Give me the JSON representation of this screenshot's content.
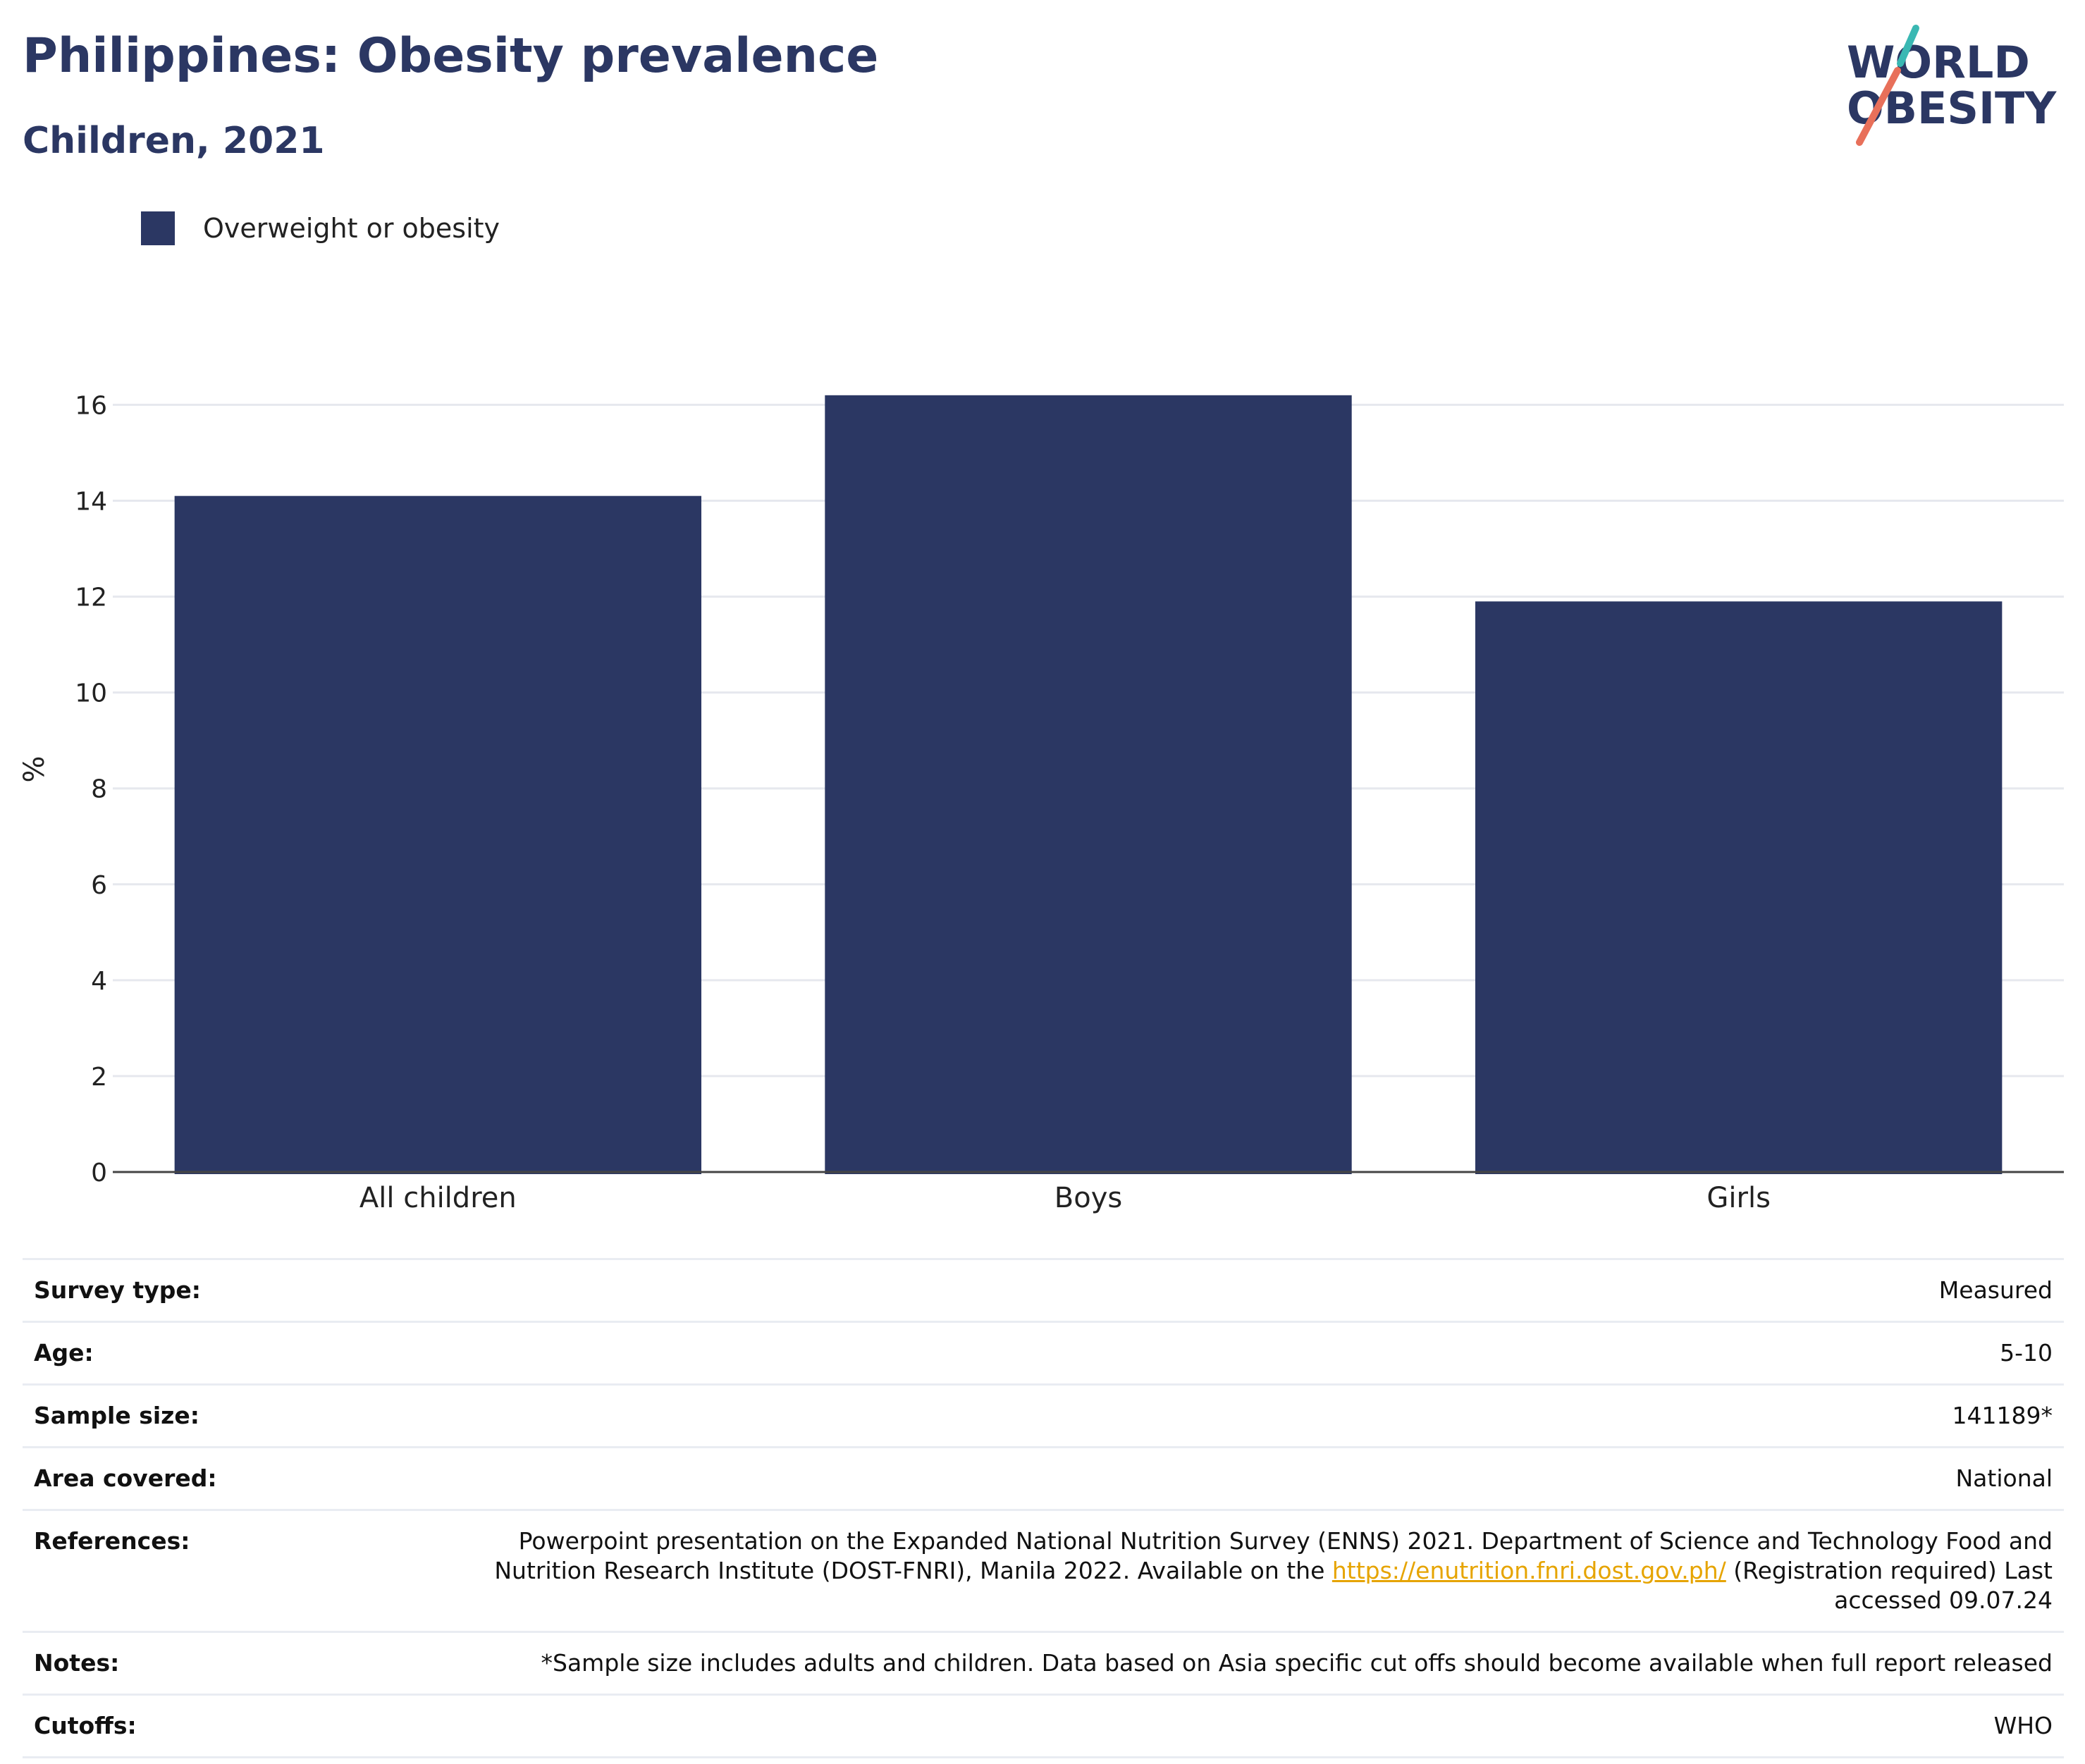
{
  "header": {
    "title": "Philippines: Obesity prevalence",
    "subtitle": "Children, 2021"
  },
  "logo": {
    "line1": "WORLD",
    "line2": "OBESITY"
  },
  "colors": {
    "bar": "#2b3763",
    "title": "#2b3763",
    "link": "#e6a400",
    "logo_teal": "#3ab8b3",
    "logo_coral": "#e8705a"
  },
  "chart_data": {
    "type": "bar",
    "categories": [
      "All children",
      "Boys",
      "Girls"
    ],
    "series": [
      {
        "name": "Overweight or obesity",
        "values": [
          14.1,
          16.2,
          11.9
        ]
      }
    ],
    "ylabel": "%",
    "ylim": [
      0,
      16.8
    ],
    "yticks": [
      0,
      2,
      4,
      6,
      8,
      10,
      12,
      14,
      16
    ],
    "grid": true,
    "legend": "top-left"
  },
  "info": {
    "rows": [
      {
        "key": "Survey type:",
        "value": "Measured"
      },
      {
        "key": "Age:",
        "value": "5-10"
      },
      {
        "key": "Sample size:",
        "value": "141189*"
      },
      {
        "key": "Area covered:",
        "value": "National"
      },
      {
        "key": "References:",
        "value_before": "Powerpoint presentation on the Expanded National Nutrition Survey (ENNS) 2021. Department of Science and Technology Food and Nutrition Research Institute (DOST-FNRI), Manila 2022. Available on the ",
        "link": "https://enutrition.fnri.dost.gov.ph/",
        "value_after": " (Registration required) Last accessed 09.07.24"
      },
      {
        "key": "Notes:",
        "value": "*Sample size includes adults and children. Data based on Asia specific cut offs should become available when full report released"
      },
      {
        "key": "Cutoffs:",
        "value": "WHO"
      }
    ]
  }
}
